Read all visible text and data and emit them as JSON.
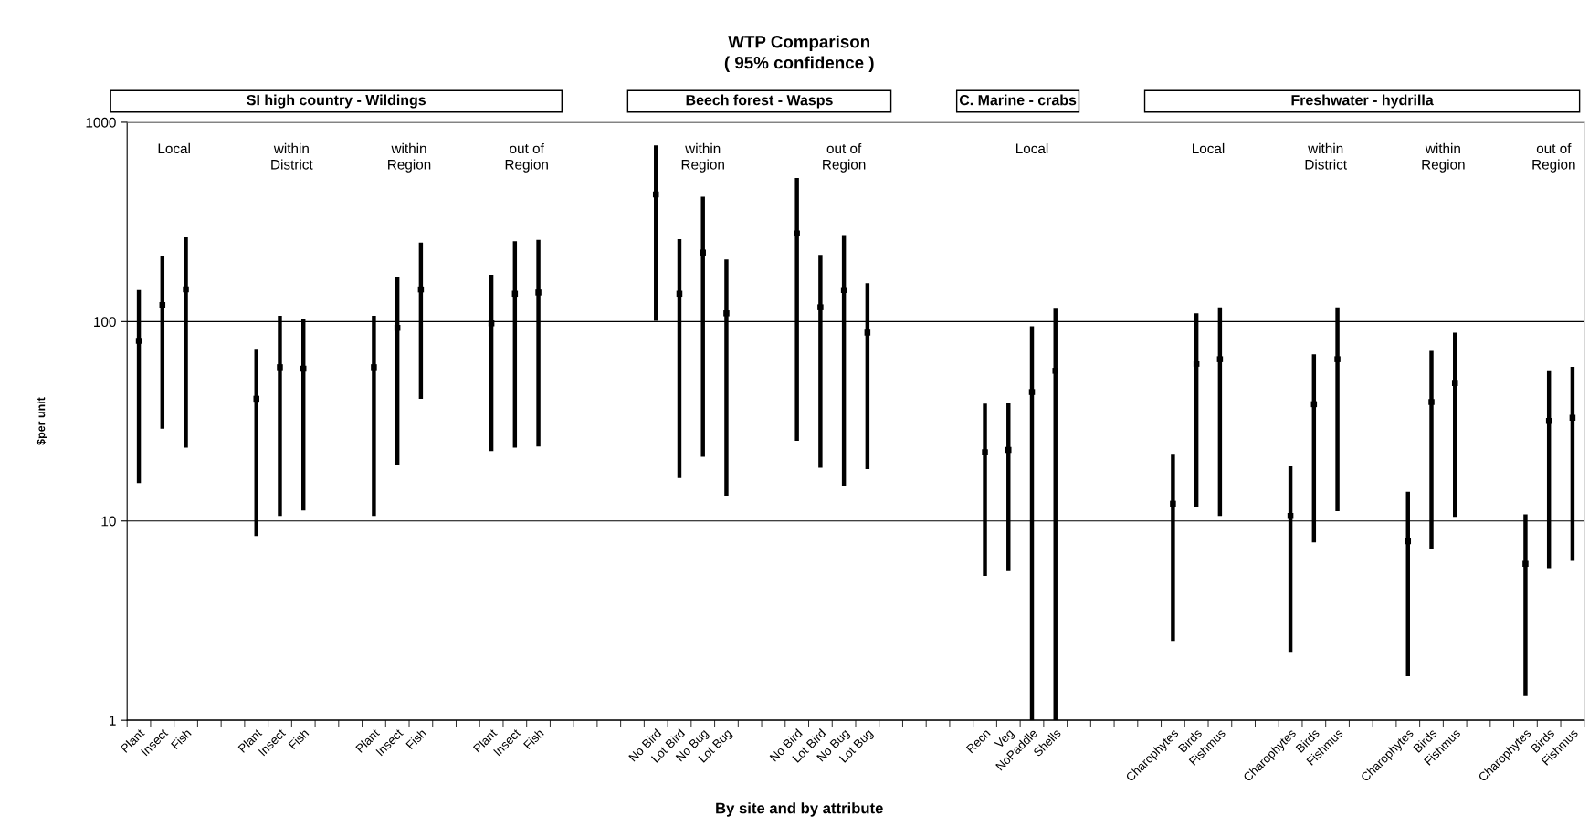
{
  "chart_data": {
    "type": "scatter",
    "title": "WTP Comparison\n( 95% confidence )",
    "xlabel": "By site and by attribute",
    "ylabel": "$per unit",
    "categories": [
      "Plant",
      "Insect",
      "Fish",
      null,
      null,
      "Plant",
      "Insect",
      "Fish",
      null,
      null,
      "Plant",
      "Insect",
      "Fish",
      null,
      null,
      "Plant",
      "Insect",
      "Fish",
      null,
      null,
      null,
      null,
      "No Bird",
      "Lot Bird",
      "No Bug",
      "Lot Bug",
      null,
      null,
      "No Bird",
      "Lot Bird",
      "No Bug",
      "Lot Bug",
      null,
      null,
      null,
      null,
      "Recn",
      "Veg",
      "NoPaddle",
      "Shells",
      null,
      null,
      null,
      null,
      "Charophytes",
      "Birds",
      "Fishmus",
      null,
      null,
      "Charophytes",
      "Birds",
      "Fishmus",
      null,
      null,
      "Charophytes",
      "Birds",
      "Fishmus",
      null,
      null,
      "Charophytes",
      "Birds",
      "Fishmus"
    ],
    "values": [
      80,
      121,
      145,
      null,
      null,
      41,
      59,
      58,
      null,
      null,
      59,
      93,
      145,
      null,
      null,
      98,
      138,
      140,
      null,
      null,
      null,
      null,
      434,
      138,
      222,
      110,
      null,
      null,
      277,
      118,
      144,
      88,
      null,
      null,
      null,
      null,
      22.1,
      22.7,
      44.3,
      56.6,
      null,
      null,
      null,
      null,
      12.2,
      61.4,
      64.7,
      null,
      null,
      10.6,
      38.5,
      64.7,
      null,
      null,
      7.9,
      39.5,
      49.2,
      null,
      null,
      6.1,
      31.7,
      32.9
    ],
    "errors": [
      [
        15.5,
        144
      ],
      [
        29,
        213
      ],
      [
        23.3,
        265
      ],
      null,
      null,
      [
        8.4,
        73
      ],
      [
        10.6,
        107
      ],
      [
        11.3,
        103
      ],
      null,
      null,
      [
        10.6,
        107
      ],
      [
        19,
        167
      ],
      [
        41,
        249
      ],
      null,
      null,
      [
        22.4,
        172
      ],
      [
        23.3,
        253
      ],
      [
        23.6,
        257
      ],
      null,
      null,
      null,
      null,
      [
        101,
        765
      ],
      [
        16.4,
        259
      ],
      [
        21,
        423
      ],
      [
        13.4,
        205
      ],
      null,
      null,
      [
        25.2,
        526
      ],
      [
        18.5,
        216
      ],
      [
        15,
        269
      ],
      [
        18.2,
        156
      ],
      null,
      null,
      null,
      null,
      [
        5.3,
        38.8
      ],
      [
        5.6,
        39.3
      ],
      [
        1,
        94.8
      ],
      [
        1,
        116
      ],
      null,
      null,
      null,
      null,
      [
        2.5,
        21.7
      ],
      [
        11.8,
        110
      ],
      [
        10.6,
        118
      ],
      null,
      null,
      [
        2.2,
        18.8
      ],
      [
        7.8,
        68.5
      ],
      [
        11.2,
        118
      ],
      null,
      null,
      [
        1.66,
        14
      ],
      [
        7.2,
        71.2
      ],
      [
        10.5,
        88
      ],
      null,
      null,
      [
        1.32,
        10.8
      ],
      [
        5.8,
        57
      ],
      [
        6.3,
        59.3
      ]
    ],
    "color": "#000000",
    "log": true,
    "ylim": [
      1,
      1000
    ],
    "yticks": [
      1,
      10,
      100,
      1000
    ],
    "grid": "y",
    "annotations": [
      "SI high country - Wildings",
      "Local",
      "within\nDistrict",
      "within\nRegion",
      "out of\nRegion",
      "Beech forest - Wasps",
      "within\nRegion",
      "out of\nRegion",
      "C. Marine - crabs",
      "Local",
      "Freshwater - hydrilla",
      "Local",
      "within\nDistrict",
      "within\nRegion",
      "out of\nRegion"
    ]
  }
}
